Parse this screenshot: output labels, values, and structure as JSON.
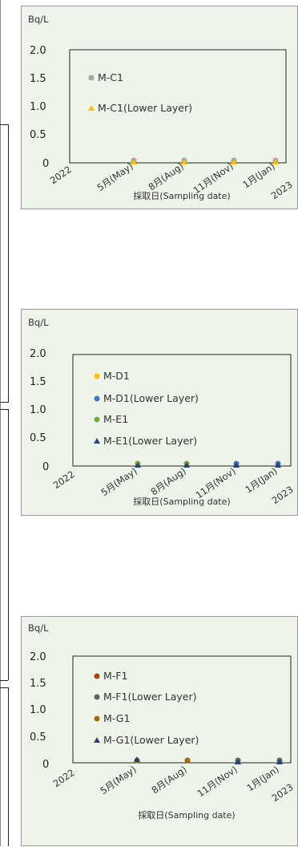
{
  "charts": [
    {
      "unit": "Bq/L",
      "xlabel": "採取日(Sampling date)",
      "yticks": [
        "2.0",
        "1.5",
        "1.0",
        "0.5",
        "0"
      ],
      "categories": [
        "2022",
        "5月(May)",
        "8月(Aug)",
        "11月(Nov)",
        "1月(Jan)",
        "2023"
      ],
      "series": [
        {
          "name": "M-C1",
          "marker": "circle",
          "color": "#a5a5a5"
        },
        {
          "name": "M-C1(Lower Layer)",
          "marker": "triangle",
          "color": "#ffc000"
        }
      ]
    },
    {
      "unit": "Bq/L",
      "xlabel": "採取日(Sampling date)",
      "yticks": [
        "2.0",
        "1.5",
        "1.0",
        "0.5",
        "0"
      ],
      "categories": [
        "2022",
        "5月(May)",
        "8月(Aug)",
        "11月(Nov)",
        "1月(Jan)",
        "2023"
      ],
      "series": [
        {
          "name": "M-D1",
          "marker": "circle",
          "color": "#ffc000"
        },
        {
          "name": "M-D1(Lower Layer)",
          "marker": "circle",
          "color": "#4472c4"
        },
        {
          "name": "M-E1",
          "marker": "circle",
          "color": "#70ad47"
        },
        {
          "name": "M-E1(Lower Layer)",
          "marker": "triangle",
          "color": "#264478"
        }
      ]
    },
    {
      "unit": "Bq/L",
      "xlabel": "採取日(Sampling date)",
      "yticks": [
        "2.0",
        "1.5",
        "1.0",
        "0.5",
        "0"
      ],
      "categories": [
        "2022",
        "5月(May)",
        "8月(Aug)",
        "11月(Nov)",
        "1月(Jan)",
        "2023"
      ],
      "series": [
        {
          "name": "M-F1",
          "marker": "circle",
          "color": "#9e480e"
        },
        {
          "name": "M-F1(Lower Layer)",
          "marker": "circle",
          "color": "#636363"
        },
        {
          "name": "M-G1",
          "marker": "circle",
          "color": "#997300"
        },
        {
          "name": "M-G1(Lower Layer)",
          "marker": "triangle",
          "color": "#264478"
        }
      ]
    }
  ],
  "chart_data": [
    {
      "type": "scatter",
      "ylabel": "Bq/L",
      "xlabel": "採取日(Sampling date)",
      "ylim": [
        0,
        2.0
      ],
      "x": [
        "5月(May)",
        "8月(Aug)",
        "11月(Nov)",
        "1月(Jan)"
      ],
      "series": [
        {
          "name": "M-C1",
          "values": [
            0.05,
            0.05,
            0.05,
            0.05
          ]
        },
        {
          "name": "M-C1(Lower Layer)",
          "values": [
            0.05,
            0.05,
            0.05,
            0.05
          ]
        }
      ],
      "legend": "inside-top-left",
      "grid": false
    },
    {
      "type": "scatter",
      "ylabel": "Bq/L",
      "xlabel": "採取日(Sampling date)",
      "ylim": [
        0,
        2.0
      ],
      "x": [
        "5月(May)",
        "8月(Aug)",
        "11月(Nov)",
        "1月(Jan)"
      ],
      "series": [
        {
          "name": "M-D1",
          "values": [
            0.05,
            0.05,
            0.05,
            0.05
          ]
        },
        {
          "name": "M-D1(Lower Layer)",
          "values": [
            0.05,
            0.05,
            0.05,
            0.05
          ]
        },
        {
          "name": "M-E1",
          "values": [
            0.05,
            0.05,
            0.05,
            0.05
          ]
        },
        {
          "name": "M-E1(Lower Layer)",
          "values": [
            0.05,
            0.05,
            0.05,
            0.05
          ]
        }
      ],
      "legend": "inside-top-left",
      "grid": false
    },
    {
      "type": "scatter",
      "ylabel": "Bq/L",
      "xlabel": "採取日(Sampling date)",
      "ylim": [
        0,
        2.0
      ],
      "x": [
        "5月(May)",
        "8月(Aug)",
        "11月(Nov)",
        "1月(Jan)"
      ],
      "series": [
        {
          "name": "M-F1",
          "values": [
            0.05,
            0.05,
            0.05,
            0.05
          ]
        },
        {
          "name": "M-F1(Lower Layer)",
          "values": [
            0.05,
            0.05,
            0.05,
            0.05
          ]
        },
        {
          "name": "M-G1",
          "values": [
            0.05,
            0.05,
            0.05,
            0.05
          ]
        },
        {
          "name": "M-G1(Lower Layer)",
          "values": [
            0.05,
            0.05,
            0.05,
            0.05
          ]
        }
      ],
      "legend": "inside-top-left",
      "grid": false
    }
  ]
}
